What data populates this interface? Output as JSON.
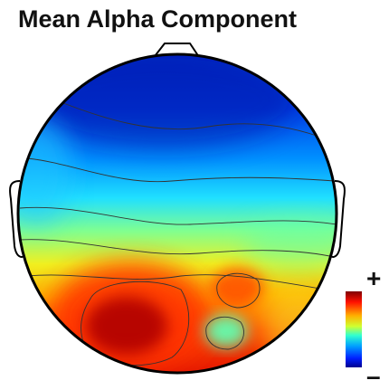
{
  "title": "Mean Alpha Component",
  "colorbar": {
    "max_label": "+",
    "min_label": "–",
    "colors": [
      "#00008f",
      "#0050ff",
      "#00d0ff",
      "#7fff7f",
      "#ffd000",
      "#ff3000",
      "#7f0000"
    ]
  },
  "map_colors": {
    "head_outline": "#000000",
    "contour": "#333333"
  }
}
